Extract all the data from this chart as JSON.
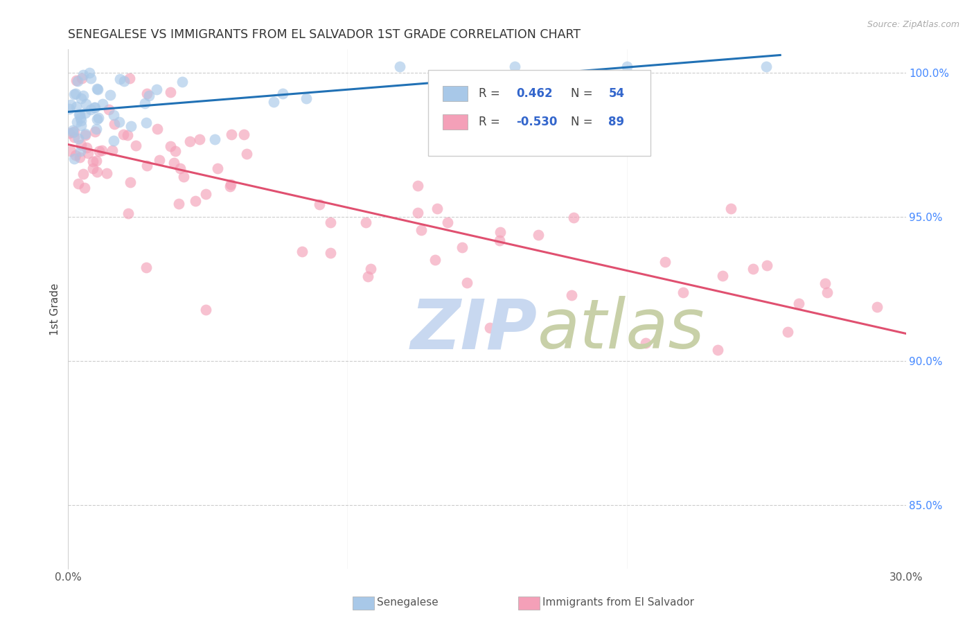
{
  "title": "SENEGALESE VS IMMIGRANTS FROM EL SALVADOR 1ST GRADE CORRELATION CHART",
  "source": "Source: ZipAtlas.com",
  "ylabel": "1st Grade",
  "legend_blue_label": "Senegalese",
  "legend_pink_label": "Immigrants from El Salvador",
  "blue_color": "#a8c8e8",
  "blue_line_color": "#2171b5",
  "pink_color": "#f4a0b8",
  "pink_line_color": "#e05070",
  "watermark_zip_color": "#c8d8f0",
  "watermark_atlas_color": "#c8d0a8",
  "grid_color": "#cccccc",
  "right_axis_color": "#4488ff",
  "title_color": "#333333",
  "source_color": "#aaaaaa",
  "x_min": 0.0,
  "x_max": 0.3,
  "y_min": 0.828,
  "y_max": 1.008,
  "ytick_positions": [
    0.85,
    0.9,
    0.95,
    1.0
  ],
  "ytick_labels": [
    "85.0%",
    "90.0%",
    "95.0%",
    "100.0%"
  ],
  "xtick_left_label": "0.0%",
  "xtick_right_label": "30.0%",
  "legend_blue_r_val": "0.462",
  "legend_blue_n_val": "54",
  "legend_pink_r_val": "-0.530",
  "legend_pink_n_val": "89"
}
